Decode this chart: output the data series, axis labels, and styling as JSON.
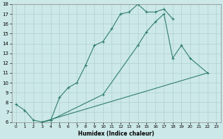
{
  "xlabel": "Humidex (Indice chaleur)",
  "xlim": [
    -0.5,
    23.5
  ],
  "ylim": [
    6,
    18
  ],
  "xticks": [
    0,
    1,
    2,
    3,
    4,
    5,
    6,
    7,
    8,
    9,
    10,
    11,
    12,
    13,
    14,
    15,
    16,
    17,
    18,
    19,
    20,
    21,
    22,
    23
  ],
  "yticks": [
    6,
    7,
    8,
    9,
    10,
    11,
    12,
    13,
    14,
    15,
    16,
    17,
    18
  ],
  "bg_color": "#cce8e8",
  "grid_color": "#b0d0d0",
  "line_color": "#2e7d6e",
  "curves": [
    {
      "x": [
        0,
        1,
        2,
        3,
        4,
        5,
        6,
        7,
        8,
        9,
        10,
        11,
        12,
        13,
        14,
        15,
        16,
        17,
        18
      ],
      "y": [
        7.8,
        7.2,
        6.2,
        6.0,
        6.2,
        8.5,
        9.5,
        10.0,
        11.8,
        13.8,
        14.2,
        15.5,
        17.0,
        17.2,
        18.0,
        17.2,
        17.2,
        17.5,
        16.5
      ],
      "has_marker": true,
      "solid": true
    },
    {
      "x": [
        3,
        4,
        10,
        14,
        15,
        16,
        17,
        18,
        19,
        20,
        22
      ],
      "y": [
        6.0,
        6.2,
        8.8,
        13.8,
        15.2,
        16.2,
        17.0,
        12.5,
        13.8,
        12.5,
        11.0
      ],
      "has_marker": true,
      "solid": true
    },
    {
      "x": [
        3,
        22
      ],
      "y": [
        6.0,
        11.0
      ],
      "has_marker": false,
      "solid": true
    }
  ]
}
